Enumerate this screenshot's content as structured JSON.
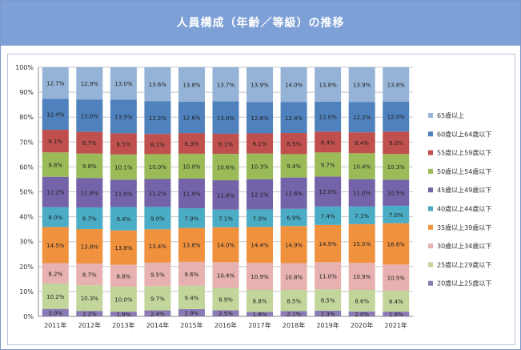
{
  "header": {
    "title": "人員構成（年齢／等級）の推移"
  },
  "chart_data": {
    "type": "bar",
    "stacked": "percent",
    "title": "人員構成（年齢／等級）の推移",
    "xlabel": "",
    "ylabel": "",
    "ylim": [
      0,
      100
    ],
    "yticks": [
      "0%",
      "10%",
      "20%",
      "30%",
      "40%",
      "50%",
      "60%",
      "70%",
      "80%",
      "90%",
      "100%"
    ],
    "grid": true,
    "legend_position": "right",
    "categories": [
      "2011年",
      "2012年",
      "2013年",
      "2014年",
      "2015年",
      "2016年",
      "2017年",
      "2018年",
      "2019年",
      "2020年",
      "2021年"
    ],
    "series": [
      {
        "name": "20歳以上25歳以下",
        "color": "#8b7bb5",
        "values": [
          3.0,
          2.2,
          1.9,
          2.4,
          2.9,
          2.5,
          1.8,
          2.1,
          2.3,
          2.0,
          1.9
        ],
        "labels": [
          "3.0%",
          "2.2%",
          "1.9%",
          "2.4%",
          "2.9%",
          "2.5%",
          "1.8%",
          "2.1%",
          "2.3%",
          "2.0%",
          "1.9%"
        ]
      },
      {
        "name": "25歳以上29歳以下",
        "color": "#c2d69b",
        "values": [
          10.2,
          10.3,
          10.0,
          9.7,
          9.4,
          8.9,
          8.8,
          8.5,
          8.5,
          8.6,
          8.4
        ],
        "labels": [
          "10.2%",
          "10.3%",
          "10.0%",
          "9.7%",
          "9.4%",
          "8.9%",
          "8.8%",
          "8.5%",
          "8.5%",
          "8.6%",
          "8.4%"
        ]
      },
      {
        "name": "30歳以上34歳以下",
        "color": "#e6b1b0",
        "values": [
          8.2,
          8.7,
          8.8,
          9.5,
          9.6,
          10.4,
          10.9,
          10.8,
          11.0,
          10.9,
          10.5
        ],
        "labels": [
          "8.2%",
          "8.7%",
          "8.8%",
          "9.5%",
          "9.6%",
          "10.4%",
          "10.9%",
          "10.8%",
          "11.0%",
          "10.9%",
          "10.5%"
        ]
      },
      {
        "name": "35歳以上39歳以下",
        "color": "#f0913e",
        "values": [
          14.5,
          13.8,
          13.8,
          13.4,
          13.6,
          14.0,
          14.4,
          14.9,
          14.9,
          15.5,
          16.6
        ],
        "labels": [
          "14.5%",
          "13.8%",
          "13.8%",
          "13.4%",
          "13.6%",
          "14.0%",
          "14.4%",
          "14.9%",
          "14.9%",
          "15.5%",
          "16.6%"
        ]
      },
      {
        "name": "40歳以上44歳以下",
        "color": "#4bacc6",
        "values": [
          8.0,
          8.7,
          9.4,
          9.0,
          7.9,
          7.1,
          7.0,
          6.9,
          7.4,
          7.1,
          7.0
        ],
        "labels": [
          "8.0%",
          "8.7%",
          "9.4%",
          "9.0%",
          "7.9%",
          "7.1%",
          "7.0%",
          "6.9%",
          "7.4%",
          "7.1%",
          "7.0%"
        ]
      },
      {
        "name": "45歳以上49歳以下",
        "color": "#7463a8",
        "values": [
          12.2,
          11.8,
          11.0,
          11.2,
          11.9,
          11.8,
          12.1,
          12.6,
          12.0,
          11.0,
          10.5
        ],
        "labels": [
          "12.2%",
          "11.8%",
          "11.0%",
          "11.2%",
          "11.9%",
          "11.8%",
          "12.1%",
          "12.6%",
          "12.0%",
          "11.0%",
          "10.5%"
        ]
      },
      {
        "name": "50歳以上54歳以下",
        "color": "#9bbb59",
        "values": [
          9.8,
          9.8,
          10.1,
          10.0,
          10.0,
          10.6,
          10.3,
          9.4,
          9.7,
          10.4,
          10.3
        ],
        "labels": [
          "9.8%",
          "9.8%",
          "10.1%",
          "10.0%",
          "10.0%",
          "10.6%",
          "10.3%",
          "9.4%",
          "9.7%",
          "10.4%",
          "10.3%"
        ]
      },
      {
        "name": "55歳以上59歳以下",
        "color": "#c0504d",
        "values": [
          9.1,
          8.7,
          8.5,
          8.1,
          8.3,
          8.1,
          8.1,
          8.5,
          8.4,
          8.4,
          9.0
        ],
        "labels": [
          "9.1%",
          "8.7%",
          "8.5%",
          "8.1%",
          "8.3%",
          "8.1%",
          "8.1%",
          "8.5%",
          "8.4%",
          "8.4%",
          "9.0%"
        ]
      },
      {
        "name": "60歳以上64歳以下",
        "color": "#4f81bd",
        "values": [
          12.4,
          13.0,
          13.5,
          13.2,
          12.6,
          13.0,
          12.6,
          12.4,
          12.0,
          12.2,
          12.0
        ],
        "labels": [
          "12.4%",
          "13.0%",
          "13.5%",
          "13.2%",
          "12.6%",
          "13.0%",
          "12.6%",
          "12.4%",
          "12.0%",
          "12.2%",
          "12.0%"
        ]
      },
      {
        "name": "65歳以上",
        "color": "#95b3d7",
        "values": [
          12.7,
          12.9,
          13.0,
          13.6,
          13.8,
          13.7,
          13.9,
          14.0,
          13.8,
          13.9,
          13.8
        ],
        "labels": [
          "12.7%",
          "12.9%",
          "13.0%",
          "13.6%",
          "13.8%",
          "13.7%",
          "13.9%",
          "14.0%",
          "13.8%",
          "13.9%",
          "13.8%"
        ]
      }
    ]
  }
}
